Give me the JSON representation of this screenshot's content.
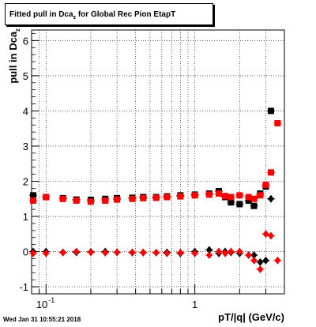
{
  "title": {
    "main": "Fitted pull in Dca",
    "sub": "z",
    "rest": " for Global Rec Pion EtapT"
  },
  "ylabel": {
    "main": "pull in Dca",
    "sub": "z"
  },
  "xlabel": "pT/|q| (GeV/c)",
  "timestamp": "Wed Jan 31 10:55:21 2018",
  "colors": {
    "series_a": "#000000",
    "series_b": "#ff0000",
    "grid": "#000000"
  },
  "chart_data": {
    "type": "scatter",
    "x_scale": "log",
    "xlim": [
      0.08,
      4.0
    ],
    "ylim": [
      -1.2,
      6.3
    ],
    "grid": true,
    "x_tick_labels": [
      {
        "value": 0.1,
        "base": "10",
        "exp": "-1"
      },
      {
        "value": 1,
        "base": "1",
        "exp": ""
      }
    ],
    "y_ticks": [
      -1,
      0,
      1,
      2,
      3,
      4,
      5,
      6
    ],
    "series": [
      {
        "marker": "square",
        "color": "#000000",
        "points": [
          [
            0.082,
            1.6
          ],
          [
            0.1,
            1.55
          ],
          [
            0.13,
            1.52
          ],
          [
            0.16,
            1.48
          ],
          [
            0.2,
            1.47
          ],
          [
            0.25,
            1.5
          ],
          [
            0.3,
            1.52
          ],
          [
            0.38,
            1.53
          ],
          [
            0.45,
            1.55
          ],
          [
            0.55,
            1.55
          ],
          [
            0.65,
            1.57
          ],
          [
            0.8,
            1.6
          ],
          [
            1.0,
            1.62
          ],
          [
            1.25,
            1.65
          ],
          [
            1.45,
            1.72
          ],
          [
            1.6,
            1.55
          ],
          [
            1.75,
            1.4
          ],
          [
            2.0,
            1.35
          ],
          [
            2.3,
            1.45
          ],
          [
            2.5,
            1.3
          ],
          [
            2.75,
            1.65
          ],
          [
            3.0,
            1.85
          ],
          [
            3.25,
            4.0
          ]
        ]
      },
      {
        "marker": "square",
        "color": "#ff0000",
        "points": [
          [
            0.082,
            1.45
          ],
          [
            0.1,
            1.55
          ],
          [
            0.13,
            1.5
          ],
          [
            0.16,
            1.45
          ],
          [
            0.2,
            1.42
          ],
          [
            0.25,
            1.45
          ],
          [
            0.3,
            1.48
          ],
          [
            0.38,
            1.5
          ],
          [
            0.45,
            1.52
          ],
          [
            0.55,
            1.53
          ],
          [
            0.65,
            1.55
          ],
          [
            0.8,
            1.57
          ],
          [
            1.0,
            1.6
          ],
          [
            1.25,
            1.62
          ],
          [
            1.45,
            1.65
          ],
          [
            1.6,
            1.58
          ],
          [
            1.75,
            1.55
          ],
          [
            2.0,
            1.6
          ],
          [
            2.3,
            1.55
          ],
          [
            2.5,
            1.5
          ],
          [
            2.75,
            1.6
          ],
          [
            3.0,
            1.9
          ],
          [
            3.25,
            2.25
          ],
          [
            3.6,
            3.65
          ]
        ]
      },
      {
        "marker": "diamond",
        "color": "#000000",
        "points": [
          [
            0.082,
            0.0
          ],
          [
            0.1,
            0.0
          ],
          [
            0.13,
            -0.02
          ],
          [
            0.16,
            -0.02
          ],
          [
            0.2,
            -0.01
          ],
          [
            0.25,
            0.0
          ],
          [
            0.3,
            -0.02
          ],
          [
            0.38,
            -0.03
          ],
          [
            0.45,
            -0.03
          ],
          [
            0.55,
            -0.03
          ],
          [
            0.65,
            -0.02
          ],
          [
            0.8,
            -0.05
          ],
          [
            1.0,
            0.0
          ],
          [
            1.25,
            0.05
          ],
          [
            1.45,
            -0.05
          ],
          [
            1.6,
            0.0
          ],
          [
            1.75,
            -0.02
          ],
          [
            2.0,
            -0.05
          ],
          [
            2.3,
            -0.1
          ],
          [
            2.5,
            -0.1
          ],
          [
            2.75,
            -0.3
          ],
          [
            3.0,
            -0.25
          ],
          [
            3.25,
            1.5
          ]
        ]
      },
      {
        "marker": "diamond",
        "color": "#ff0000",
        "points": [
          [
            0.082,
            -0.05
          ],
          [
            0.1,
            -0.05
          ],
          [
            0.13,
            -0.03
          ],
          [
            0.16,
            0.0
          ],
          [
            0.2,
            -0.02
          ],
          [
            0.25,
            -0.03
          ],
          [
            0.3,
            -0.02
          ],
          [
            0.38,
            -0.02
          ],
          [
            0.45,
            -0.02
          ],
          [
            0.55,
            -0.03
          ],
          [
            0.65,
            -0.05
          ],
          [
            0.8,
            -0.03
          ],
          [
            1.0,
            -0.05
          ],
          [
            1.25,
            -0.1
          ],
          [
            1.45,
            0.0
          ],
          [
            1.6,
            -0.05
          ],
          [
            1.75,
            0.0
          ],
          [
            2.0,
            0.0
          ],
          [
            2.3,
            -0.1
          ],
          [
            2.5,
            -0.25
          ],
          [
            2.75,
            -0.5
          ],
          [
            3.0,
            0.5
          ],
          [
            3.25,
            0.45
          ],
          [
            3.6,
            -0.25
          ]
        ]
      }
    ]
  }
}
